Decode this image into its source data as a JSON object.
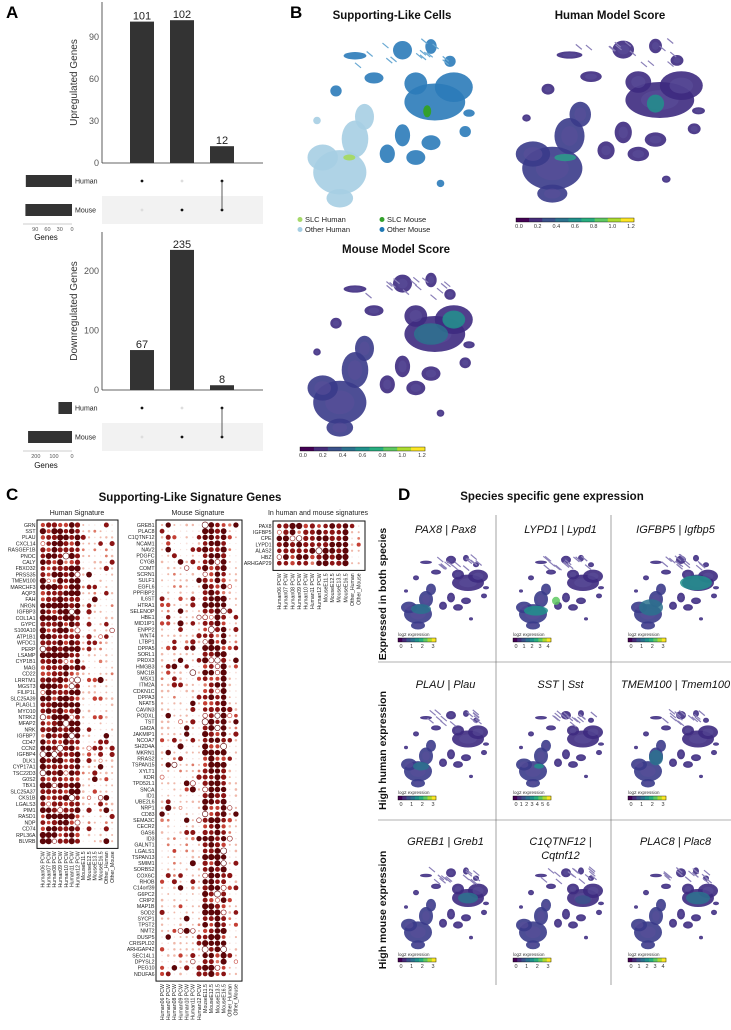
{
  "panel_labels": {
    "a": "A",
    "b": "B",
    "c": "C",
    "d": "D"
  },
  "chart_data": [
    {
      "type": "bar",
      "subtype": "upset",
      "ylabel": "Upregulated Genes",
      "categories": [
        "Human only",
        "Mouse only",
        "Human & Mouse"
      ],
      "values": [
        101,
        102,
        12
      ],
      "yticks": [
        0,
        30,
        60,
        90
      ],
      "ylim": [
        0,
        115
      ],
      "sets": [
        {
          "name": "Human",
          "size": 113
        },
        {
          "name": "Mouse",
          "size": 114
        }
      ],
      "matrix": [
        [
          "Human"
        ],
        [
          "Mouse"
        ],
        [
          "Human",
          "Mouse"
        ]
      ],
      "set_axis_label": "Genes",
      "set_ticks": [
        "90",
        "60",
        "30",
        "0"
      ]
    },
    {
      "type": "bar",
      "subtype": "upset",
      "ylabel": "Downregulated Genes",
      "categories": [
        "Human only",
        "Mouse only",
        "Human & Mouse"
      ],
      "values": [
        67,
        235,
        8
      ],
      "yticks": [
        0,
        100,
        200
      ],
      "ylim": [
        0,
        265
      ],
      "sets": [
        {
          "name": "Human",
          "size": 75
        },
        {
          "name": "Mouse",
          "size": 243
        }
      ],
      "matrix": [
        [
          "Human"
        ],
        [
          "Mouse"
        ],
        [
          "Human",
          "Mouse"
        ]
      ],
      "set_axis_label": "Genes",
      "set_ticks": [
        "200",
        "100",
        "0"
      ]
    }
  ],
  "panel_b": {
    "slc_title": "Supporting-Like Cells",
    "human_title": "Human Model Score",
    "mouse_title": "Mouse Model Score",
    "legend": [
      {
        "label": "SLC Human",
        "color": "#a6d96a"
      },
      {
        "label": "SLC Mouse",
        "color": "#33a02c"
      },
      {
        "label": "Other Human",
        "color": "#a6cee3"
      },
      {
        "label": "Other Mouse",
        "color": "#1f78b4"
      }
    ],
    "colorbar_ticks": [
      "0.0",
      "0.2",
      "0.4",
      "0.6",
      "0.8",
      "1.0",
      "1.2"
    ],
    "colormap": "viridis"
  },
  "panel_c": {
    "title": "Supporting-Like Signature Genes",
    "columns": [
      "Human06 PCW",
      "Human07 PCW",
      "Human08 PCW",
      "Human09 PCW",
      "Human10 PCW",
      "Human11 PCW",
      "Human12 PCW",
      "MouseE11.5",
      "MouseE12.5",
      "MouseE13.5",
      "MouseE16.5",
      "Other_Human",
      "Other_Mouse"
    ],
    "human": {
      "title": "Human Signature",
      "genes": [
        "GRN",
        "SST",
        "PLAU",
        "CXCL14",
        "RASGEF1B",
        "PNOC",
        "CALY",
        "FBXO32",
        "PRSS35",
        "TMEM100",
        "MARCHF3",
        "AQP3",
        "FAH",
        "NRGN",
        "IGFBP3",
        "COL1A1",
        "GYPC",
        "S100A10",
        "ATP1B1",
        "WFDC1",
        "PERP",
        "LSAMP",
        "CYP1B1",
        "MAG",
        "CD22",
        "LRRTM1",
        "MGST3",
        "FILIP1L",
        "SLC25A39",
        "PLAGL1",
        "MYO10",
        "NTRK2",
        "MFAP2",
        "NRK",
        "IGFBP7",
        "CD47",
        "CCN2",
        "IGFBP4",
        "DLK1",
        "CYP17A1",
        "TSC22D3",
        "G0S2",
        "TBX1",
        "SLC25A37",
        "CKS1B",
        "LGALS3",
        "PIM1",
        "RASD1",
        "NDP",
        "CD74",
        "RPL36A",
        "BLVRB"
      ]
    },
    "mouse": {
      "title": "Mouse Signature",
      "genes": [
        "GREB1",
        "PLAC8",
        "C1QTNF12",
        "NCAM1",
        "NAV2",
        "PDGFC",
        "CYGB",
        "COMT",
        "SCRN1",
        "SULF1",
        "EGFL6",
        "PPFIBP2",
        "IL6ST",
        "HTRA1",
        "SELENOP",
        "HBE1",
        "MID1IP1",
        "ENPP2",
        "WNT4",
        "LTBP1",
        "DPPA5",
        "SORL1",
        "PRDX3",
        "HMGB3",
        "SMC1B",
        "MSX1",
        "ITM2A",
        "CDKN1C",
        "DPPA3",
        "NFAT5",
        "CAVIN3",
        "PODXL",
        "TST",
        "GM2A",
        "JAKMIP1",
        "NCOA7",
        "SH2D4A",
        "MKRN1",
        "RRAS2",
        "TSPAN15",
        "XYLT1",
        "KDR",
        "TPD52L1",
        "SNCA",
        "ID1",
        "UBE2L6",
        "NRP1",
        "CD83",
        "SEMA3C",
        "CECR2",
        "GAS6",
        "ID3",
        "GALNT1",
        "LGALS1",
        "TSPAN13",
        "SMIM1",
        "SORBS2",
        "COX6C",
        "RHOB",
        "C14orf39",
        "G6PC2",
        "CRIP2",
        "MAP1B",
        "SOD2",
        "SYCP1",
        "TPST2",
        "NMT2",
        "DUSP5",
        "CRISPLD2",
        "ARHGAP42",
        "SEC14L1",
        "DPYSL2",
        "PEG10",
        "NDUFA6"
      ]
    },
    "both": {
      "title": "In human and mouse signatures",
      "genes": [
        "PAX8",
        "IGFBP5",
        "CPE",
        "LYPD1",
        "ALAS2",
        "HBZ",
        "ARHGAP29"
      ]
    }
  },
  "panel_d": {
    "title": "Species specific gene expression",
    "rows": [
      {
        "label": "Expressed in both species",
        "genes": [
          {
            "human": "PAX8",
            "mouse": "Pax8",
            "ticks": [
              "0",
              "1",
              "2",
              "3"
            ]
          },
          {
            "human": "LYPD1",
            "mouse": "Lypd1",
            "ticks": [
              "0",
              "1",
              "2",
              "3",
              "4"
            ]
          },
          {
            "human": "IGFBP5",
            "mouse": "Igfbp5",
            "ticks": [
              "0",
              "1",
              "2",
              "3"
            ]
          }
        ]
      },
      {
        "label": "High human expression",
        "genes": [
          {
            "human": "PLAU",
            "mouse": "Plau",
            "ticks": [
              "0",
              "1",
              "2",
              "3"
            ]
          },
          {
            "human": "SST",
            "mouse": "Sst",
            "ticks": [
              "0",
              "1",
              "2",
              "3",
              "4",
              "5",
              "6"
            ]
          },
          {
            "human": "TMEM100",
            "mouse": "Tmem100",
            "ticks": [
              "0",
              "1",
              "2",
              "3"
            ]
          }
        ]
      },
      {
        "label": "High mouse expression",
        "genes": [
          {
            "human": "GREB1",
            "mouse": "Greb1",
            "ticks": [
              "0",
              "1",
              "2",
              "3"
            ]
          },
          {
            "human": "C1QTNF12",
            "mouse": "Cqtnf12",
            "ticks": [
              "0",
              "1",
              "2",
              "3"
            ]
          },
          {
            "human": "PLAC8",
            "mouse": "Plac8",
            "ticks": [
              "0",
              "1",
              "2",
              "3",
              "4"
            ]
          }
        ]
      }
    ],
    "colorbar_label": "log2 expression",
    "separator": "|"
  }
}
